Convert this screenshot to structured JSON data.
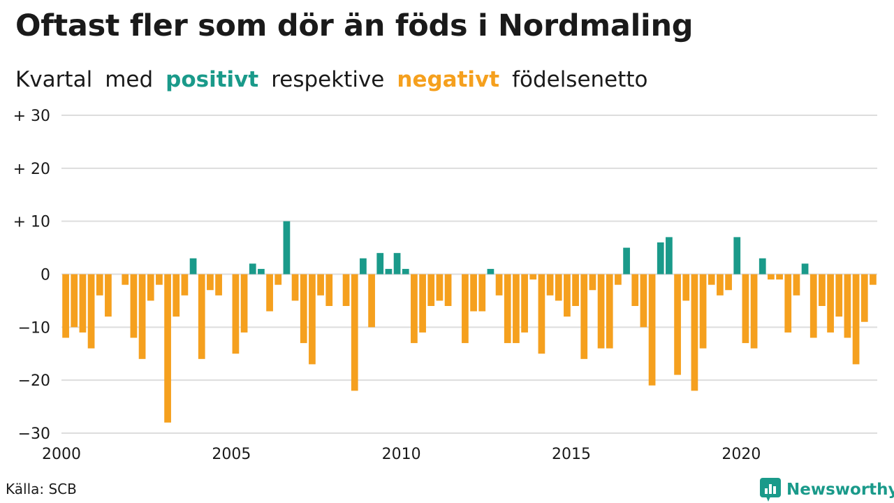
{
  "title": "Oftast fler som dör än föds i Nordmaling",
  "subtitle": {
    "part1": "Kvartal",
    "part2": "med",
    "positive_word": "positivt",
    "part3": "respektive",
    "negative_word": "negativt",
    "part4": "födelsenetto"
  },
  "colors": {
    "positive": "#1a9a8a",
    "negative": "#f5a01e",
    "grid": "#dddddd",
    "text": "#1a1a1a"
  },
  "source": "Källa: SCB",
  "brand": {
    "name": "Newsworthy",
    "icon": "newsworthy-logo-icon"
  },
  "chart_data": {
    "type": "bar",
    "title": "Oftast fler som dör än föds i Nordmaling",
    "subtitle": "Kvartal med positivt respektive negativt födelsenetto",
    "xlabel": "",
    "ylabel": "",
    "ylim": [
      -30,
      30
    ],
    "y_ticks": [
      {
        "value": 30,
        "label": "+ 30"
      },
      {
        "value": 20,
        "label": "+ 20"
      },
      {
        "value": 10,
        "label": "+ 10"
      },
      {
        "value": 0,
        "label": "0"
      },
      {
        "value": -10,
        "label": "−10"
      },
      {
        "value": -20,
        "label": "−20"
      },
      {
        "value": -30,
        "label": "−30"
      }
    ],
    "x_ticks": [
      "2000",
      "2005",
      "2010",
      "2015",
      "2020"
    ],
    "start_year": 2000,
    "grid": true,
    "categories": [
      "2000Q1",
      "2000Q2",
      "2000Q3",
      "2000Q4",
      "2001Q1",
      "2001Q2",
      "2001Q3",
      "2001Q4",
      "2002Q1",
      "2002Q2",
      "2002Q3",
      "2002Q4",
      "2003Q1",
      "2003Q2",
      "2003Q3",
      "2003Q4",
      "2004Q1",
      "2004Q2",
      "2004Q3",
      "2004Q4",
      "2005Q1",
      "2005Q2",
      "2005Q3",
      "2005Q4",
      "2006Q1",
      "2006Q2",
      "2006Q3",
      "2006Q4",
      "2007Q1",
      "2007Q2",
      "2007Q3",
      "2007Q4",
      "2008Q1",
      "2008Q2",
      "2008Q3",
      "2008Q4",
      "2009Q1",
      "2009Q2",
      "2009Q3",
      "2009Q4",
      "2010Q1",
      "2010Q2",
      "2010Q3",
      "2010Q4",
      "2011Q1",
      "2011Q2",
      "2011Q3",
      "2011Q4",
      "2012Q1",
      "2012Q2",
      "2012Q3",
      "2012Q4",
      "2013Q1",
      "2013Q2",
      "2013Q3",
      "2013Q4",
      "2014Q1",
      "2014Q2",
      "2014Q3",
      "2014Q4",
      "2015Q1",
      "2015Q2",
      "2015Q3",
      "2015Q4",
      "2016Q1",
      "2016Q2",
      "2016Q3",
      "2016Q4",
      "2017Q1",
      "2017Q2",
      "2017Q3",
      "2017Q4",
      "2018Q1",
      "2018Q2",
      "2018Q3",
      "2018Q4",
      "2019Q1",
      "2019Q2",
      "2019Q3",
      "2019Q4",
      "2020Q1",
      "2020Q2",
      "2020Q3",
      "2020Q4",
      "2021Q1",
      "2021Q2",
      "2021Q3",
      "2021Q4",
      "2022Q1",
      "2022Q2",
      "2022Q3",
      "2022Q4",
      "2023Q1",
      "2023Q2",
      "2023Q3",
      "2023Q4"
    ],
    "values": [
      -12,
      -10,
      -11,
      -14,
      -4,
      -8,
      0,
      -2,
      -12,
      -16,
      -5,
      -2,
      -28,
      -8,
      -4,
      3,
      -16,
      -3,
      -4,
      0,
      -15,
      -11,
      2,
      1,
      -7,
      -2,
      10,
      -5,
      -13,
      -17,
      -4,
      -6,
      0,
      -6,
      -22,
      3,
      -10,
      4,
      1,
      4,
      1,
      -13,
      -11,
      -6,
      -5,
      -6,
      0,
      -13,
      -7,
      -7,
      1,
      -4,
      -13,
      -13,
      -11,
      -1,
      -15,
      -4,
      -5,
      -8,
      -6,
      -16,
      -3,
      -14,
      -14,
      -2,
      5,
      -6,
      -10,
      -21,
      6,
      7,
      -19,
      -5,
      -22,
      -14,
      -2,
      -4,
      -3,
      7,
      -13,
      -14,
      3,
      -1,
      -1,
      -11,
      -4,
      2,
      -12,
      -6,
      -11,
      -8,
      -12,
      -17,
      -9,
      -2
    ]
  }
}
